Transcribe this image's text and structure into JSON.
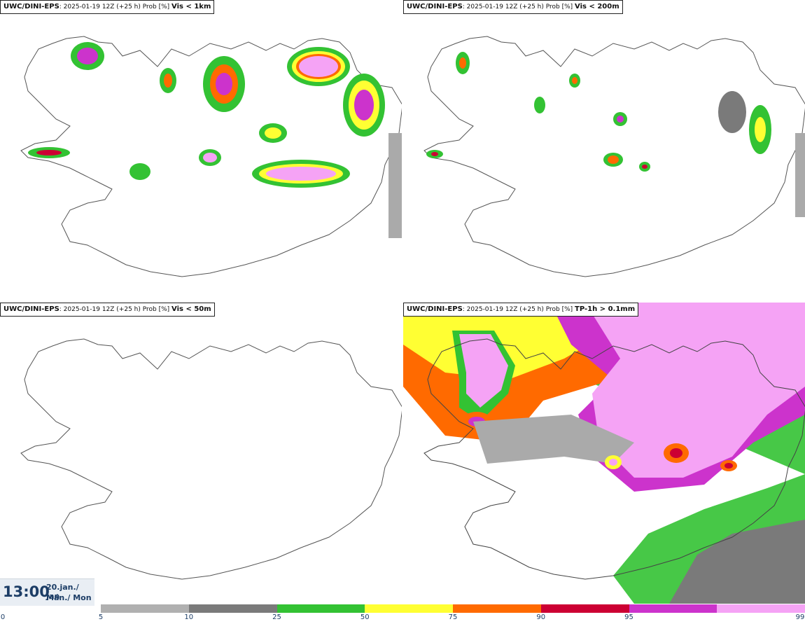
{
  "panels": [
    {
      "model": "UWC/DINI-EPS",
      "run": ": 2025-01-19 12Z (+25 h) Prob [%]",
      "param": "Vis < 1km"
    },
    {
      "model": "UWC/DINI-EPS",
      "run": ": 2025-01-19 12Z (+25 h) Prob [%]",
      "param": "Vis < 200m"
    },
    {
      "model": "UWC/DINI-EPS",
      "run": ": 2025-01-19 12Z (+25 h) Prob [%]",
      "param": "Vis < 50m"
    },
    {
      "model": "UWC/DINI-EPS",
      "run": ": 2025-01-19 12Z (+25 h) Prob [%]",
      "param": "TP-1h > 0.1mm"
    }
  ],
  "valid_time": {
    "time": "13:00",
    "date": "20.jan./ Jan",
    "weekday": "Mán./ Mon"
  },
  "colorbar": {
    "ticks": [
      "0",
      "5",
      "10",
      "25",
      "50",
      "75",
      "90",
      "95",
      "99"
    ],
    "colors": [
      "#b0b0b0",
      "#7a7a7a",
      "#33c233",
      "#ffff33",
      "#ff6a00",
      "#cc0033",
      "#cc33cc",
      "#f5a3f5"
    ]
  }
}
